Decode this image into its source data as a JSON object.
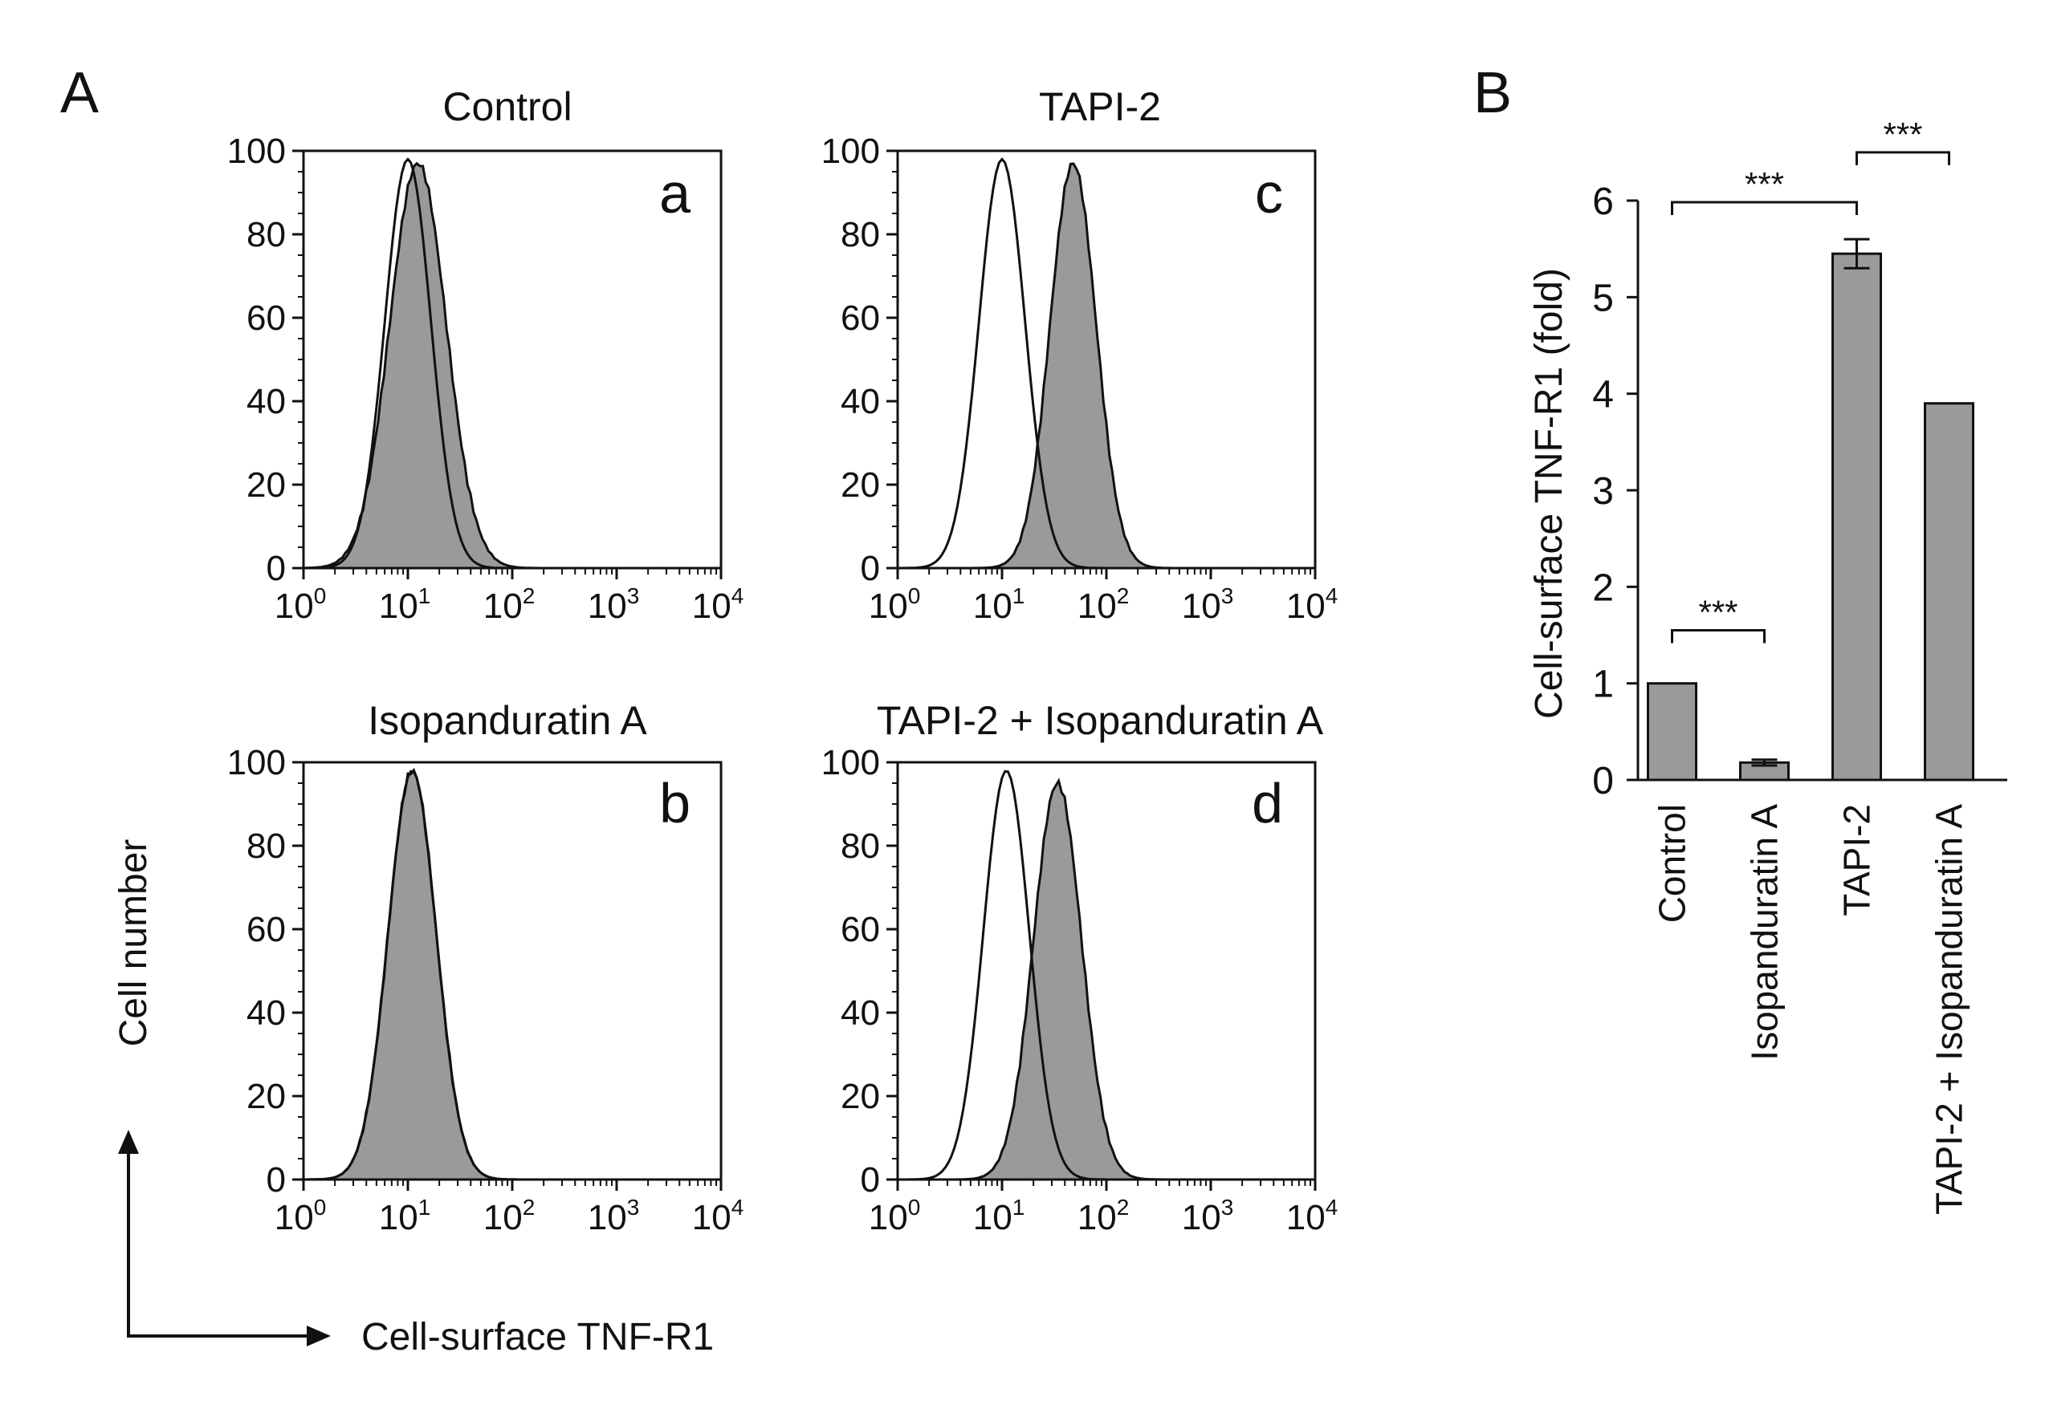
{
  "panel_a_label": "A",
  "panel_b_label": "B",
  "chart_data": [
    {
      "type": "histogram",
      "panel": "a",
      "title": "Control",
      "x_scale": "log10",
      "xlim": [
        1,
        10000
      ],
      "x_ticks": [
        {
          "base": "10",
          "exp": "0"
        },
        {
          "base": "10",
          "exp": "1"
        },
        {
          "base": "10",
          "exp": "2"
        },
        {
          "base": "10",
          "exp": "3"
        },
        {
          "base": "10",
          "exp": "4"
        }
      ],
      "ylim": [
        0,
        100
      ],
      "y_ticks": [
        "0",
        "20",
        "40",
        "60",
        "80",
        "100"
      ],
      "series": [
        {
          "name": "open",
          "style": "outline",
          "peak_x": 10,
          "log_sd": 0.22,
          "height": 98
        },
        {
          "name": "filled",
          "style": "filled",
          "peak_x": 12.5,
          "log_sd": 0.27,
          "height": 97
        }
      ]
    },
    {
      "type": "histogram",
      "panel": "b",
      "title": "Isopanduratin A",
      "x_scale": "log10",
      "xlim": [
        1,
        10000
      ],
      "x_ticks": [
        {
          "base": "10",
          "exp": "0"
        },
        {
          "base": "10",
          "exp": "1"
        },
        {
          "base": "10",
          "exp": "2"
        },
        {
          "base": "10",
          "exp": "3"
        },
        {
          "base": "10",
          "exp": "4"
        }
      ],
      "ylim": [
        0,
        100
      ],
      "y_ticks": [
        "0",
        "20",
        "40",
        "60",
        "80",
        "100"
      ],
      "series": [
        {
          "name": "open",
          "style": "outline",
          "peak_x": 11,
          "log_sd": 0.23,
          "height": 98
        },
        {
          "name": "filled",
          "style": "filled",
          "peak_x": 11,
          "log_sd": 0.23,
          "height": 98
        }
      ]
    },
    {
      "type": "histogram",
      "panel": "c",
      "title": "TAPI-2",
      "x_scale": "log10",
      "xlim": [
        1,
        10000
      ],
      "x_ticks": [
        {
          "base": "10",
          "exp": "0"
        },
        {
          "base": "10",
          "exp": "1"
        },
        {
          "base": "10",
          "exp": "2"
        },
        {
          "base": "10",
          "exp": "3"
        },
        {
          "base": "10",
          "exp": "4"
        }
      ],
      "ylim": [
        0,
        100
      ],
      "y_ticks": [
        "0",
        "20",
        "40",
        "60",
        "80",
        "100"
      ],
      "series": [
        {
          "name": "open",
          "style": "outline",
          "peak_x": 10,
          "log_sd": 0.22,
          "height": 98
        },
        {
          "name": "filled",
          "style": "filled",
          "peak_x": 48,
          "log_sd": 0.22,
          "height": 97
        }
      ]
    },
    {
      "type": "histogram",
      "panel": "d",
      "title": "TAPI-2 + Isopanduratin A",
      "x_scale": "log10",
      "xlim": [
        1,
        10000
      ],
      "x_ticks": [
        {
          "base": "10",
          "exp": "0"
        },
        {
          "base": "10",
          "exp": "1"
        },
        {
          "base": "10",
          "exp": "2"
        },
        {
          "base": "10",
          "exp": "3"
        },
        {
          "base": "10",
          "exp": "4"
        }
      ],
      "ylim": [
        0,
        100
      ],
      "y_ticks": [
        "0",
        "20",
        "40",
        "60",
        "80",
        "100"
      ],
      "series": [
        {
          "name": "open",
          "style": "outline",
          "peak_x": 11,
          "log_sd": 0.22,
          "height": 98
        },
        {
          "name": "filled",
          "style": "filled",
          "peak_x": 34,
          "log_sd": 0.23,
          "height": 95
        }
      ]
    },
    {
      "type": "bar",
      "panel": "B",
      "ylabel": "Cell-surface TNF-R1 (fold)",
      "ylim": [
        0,
        6
      ],
      "y_ticks": [
        "0",
        "1",
        "2",
        "3",
        "4",
        "5",
        "6"
      ],
      "categories": [
        "Control",
        "Isopanduratin A",
        "TAPI-2",
        "TAPI-2 + Isopanduratin A"
      ],
      "values": [
        1.0,
        0.18,
        5.45,
        3.9
      ],
      "errors": [
        0,
        0.03,
        0.15,
        0
      ],
      "significance": [
        {
          "from": 0,
          "to": 1,
          "label": "***"
        },
        {
          "from": 0,
          "to": 2,
          "label": "***"
        },
        {
          "from": 2,
          "to": 3,
          "label": "***"
        }
      ]
    }
  ],
  "y_axis_label": "Cell number",
  "x_axis_label": "Cell-surface TNF-R1"
}
